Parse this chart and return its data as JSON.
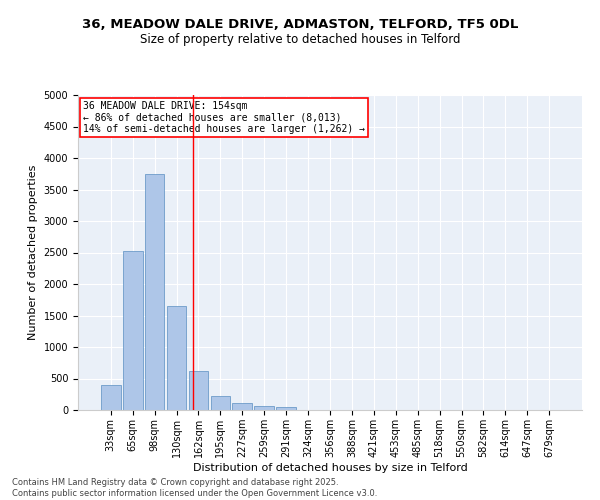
{
  "title_line1": "36, MEADOW DALE DRIVE, ADMASTON, TELFORD, TF5 0DL",
  "title_line2": "Size of property relative to detached houses in Telford",
  "xlabel": "Distribution of detached houses by size in Telford",
  "ylabel": "Number of detached properties",
  "categories": [
    "33sqm",
    "65sqm",
    "98sqm",
    "130sqm",
    "162sqm",
    "195sqm",
    "227sqm",
    "259sqm",
    "291sqm",
    "324sqm",
    "356sqm",
    "388sqm",
    "421sqm",
    "453sqm",
    "485sqm",
    "518sqm",
    "550sqm",
    "582sqm",
    "614sqm",
    "647sqm",
    "679sqm"
  ],
  "values": [
    390,
    2530,
    3750,
    1650,
    620,
    230,
    110,
    65,
    40,
    0,
    0,
    0,
    0,
    0,
    0,
    0,
    0,
    0,
    0,
    0,
    0
  ],
  "bar_color": "#aec6e8",
  "bar_edge_color": "#5a8fc2",
  "highlight_line_color": "red",
  "annotation_box_text": "36 MEADOW DALE DRIVE: 154sqm\n← 86% of detached houses are smaller (8,013)\n14% of semi-detached houses are larger (1,262) →",
  "annotation_box_color": "red",
  "ylim": [
    0,
    5000
  ],
  "yticks": [
    0,
    500,
    1000,
    1500,
    2000,
    2500,
    3000,
    3500,
    4000,
    4500,
    5000
  ],
  "background_color": "#eaf0f8",
  "grid_color": "#ffffff",
  "footer_line1": "Contains HM Land Registry data © Crown copyright and database right 2025.",
  "footer_line2": "Contains public sector information licensed under the Open Government Licence v3.0.",
  "title_fontsize": 9.5,
  "subtitle_fontsize": 8.5,
  "axis_label_fontsize": 8,
  "tick_fontsize": 7,
  "annotation_fontsize": 7,
  "footer_fontsize": 6
}
